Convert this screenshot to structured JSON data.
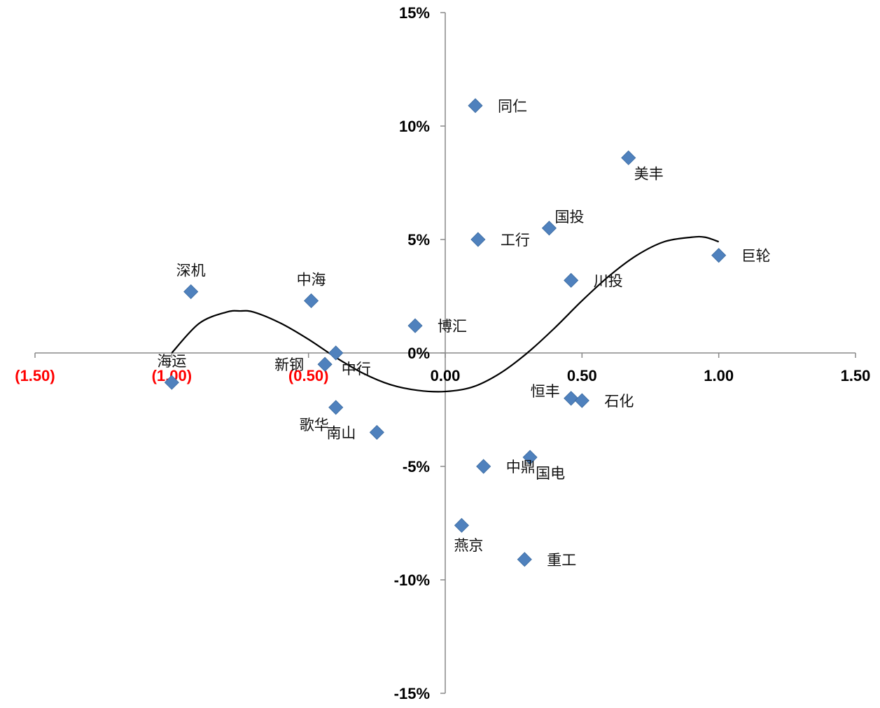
{
  "chart_data": {
    "type": "scatter",
    "title": "",
    "xlabel": "",
    "ylabel": "",
    "xlim": [
      -1.5,
      1.5
    ],
    "ylim": [
      -15,
      15
    ],
    "x_ticks": [
      {
        "value": -1.5,
        "label": "(1.50)",
        "color": "#ff0000"
      },
      {
        "value": -1.0,
        "label": "(1.00)",
        "color": "#ff0000"
      },
      {
        "value": -0.5,
        "label": "(0.50)",
        "color": "#ff0000"
      },
      {
        "value": 0.0,
        "label": "0.00",
        "color": "#000000"
      },
      {
        "value": 0.5,
        "label": "0.50",
        "color": "#000000"
      },
      {
        "value": 1.0,
        "label": "1.00",
        "color": "#000000"
      },
      {
        "value": 1.5,
        "label": "1.50",
        "color": "#000000"
      }
    ],
    "y_ticks": [
      {
        "value": 15,
        "label": "15%"
      },
      {
        "value": 10,
        "label": "10%"
      },
      {
        "value": 5,
        "label": "5%"
      },
      {
        "value": 0,
        "label": "0%"
      },
      {
        "value": -5,
        "label": "-5%"
      },
      {
        "value": -10,
        "label": "-10%"
      },
      {
        "value": -15,
        "label": "-15%"
      }
    ],
    "grid": false,
    "legend": "none",
    "marker_color": "#4f81bd",
    "curve_color": "#000000",
    "points": [
      {
        "name": "同仁",
        "x": 0.11,
        "y": 10.9,
        "label_pos": "right"
      },
      {
        "name": "美丰",
        "x": 0.67,
        "y": 8.6,
        "label_pos": "below-right"
      },
      {
        "name": "国投",
        "x": 0.38,
        "y": 5.5,
        "label_pos": "above-right"
      },
      {
        "name": "工行",
        "x": 0.12,
        "y": 5.0,
        "label_pos": "right"
      },
      {
        "name": "巨轮",
        "x": 1.0,
        "y": 4.3,
        "label_pos": "right"
      },
      {
        "name": "川投",
        "x": 0.46,
        "y": 3.2,
        "label_pos": "right"
      },
      {
        "name": "深机",
        "x": -0.93,
        "y": 2.7,
        "label_pos": "above"
      },
      {
        "name": "中海",
        "x": -0.49,
        "y": 2.3,
        "label_pos": "above"
      },
      {
        "name": "博汇",
        "x": -0.11,
        "y": 1.2,
        "label_pos": "right"
      },
      {
        "name": "中行",
        "x": -0.4,
        "y": 0.0,
        "label_pos": "below-right"
      },
      {
        "name": "新钢",
        "x": -0.44,
        "y": -0.5,
        "label_pos": "left"
      },
      {
        "name": "海运",
        "x": -1.0,
        "y": -1.3,
        "label_pos": "above"
      },
      {
        "name": "恒丰",
        "x": 0.46,
        "y": -2.0,
        "label_pos": "above-left"
      },
      {
        "name": "石化",
        "x": 0.5,
        "y": -2.1,
        "label_pos": "right"
      },
      {
        "name": "歌华",
        "x": -0.4,
        "y": -2.4,
        "label_pos": "below-left"
      },
      {
        "name": "南山",
        "x": -0.25,
        "y": -3.5,
        "label_pos": "left"
      },
      {
        "name": "国电",
        "x": 0.31,
        "y": -4.6,
        "label_pos": "below-right"
      },
      {
        "name": "中鼎",
        "x": 0.14,
        "y": -5.0,
        "label_pos": "right"
      },
      {
        "name": "燕京",
        "x": 0.06,
        "y": -7.6,
        "label_pos": "below"
      },
      {
        "name": "重工",
        "x": 0.29,
        "y": -9.1,
        "label_pos": "right"
      }
    ],
    "trend_curve": {
      "type": "polynomial",
      "x": [
        -1.0,
        -0.9,
        -0.8,
        -0.75,
        -0.7,
        -0.6,
        -0.5,
        -0.4,
        -0.3,
        -0.2,
        -0.1,
        0.0,
        0.1,
        0.2,
        0.3,
        0.4,
        0.5,
        0.6,
        0.7,
        0.8,
        0.9,
        0.95,
        1.0
      ],
      "y": [
        0.0,
        1.3,
        1.8,
        1.85,
        1.8,
        1.3,
        0.6,
        -0.2,
        -0.9,
        -1.4,
        -1.65,
        -1.7,
        -1.5,
        -0.9,
        0.0,
        1.1,
        2.3,
        3.4,
        4.3,
        4.9,
        5.1,
        5.1,
        4.9
      ]
    }
  }
}
